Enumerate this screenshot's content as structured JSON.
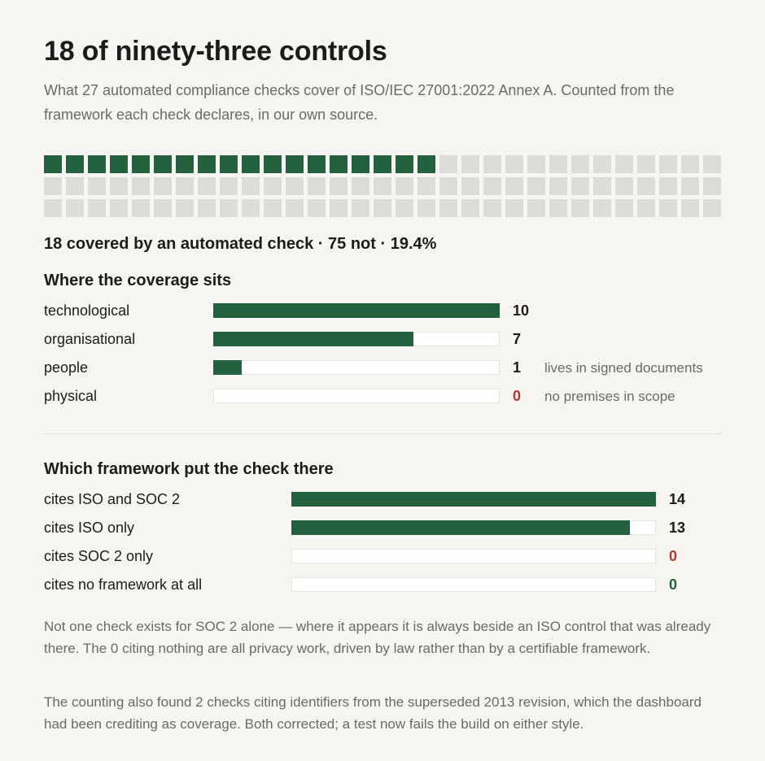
{
  "title": "18 of ninety-three controls",
  "subtitle": "What 27 automated compliance checks cover of ISO/IEC 27001:2022 Annex A. Counted from the framework each check declares, in our own source.",
  "summary": "18 covered by an automated check · 75 not · 19.4%",
  "colors": {
    "covered": "#24613f",
    "uncovered": "#dedcd7",
    "zero_alert": "#b23a2b",
    "background": "#f6f5f1"
  },
  "chart_data": [
    {
      "type": "waffle",
      "total": 93,
      "covered": 18,
      "not_covered": 75,
      "percent_covered": 19.4
    },
    {
      "type": "bar",
      "title": "Where the coverage sits",
      "categories": [
        "technological",
        "organisational",
        "people",
        "physical"
      ],
      "values": [
        10,
        7,
        1,
        0
      ],
      "display_values": [
        "10",
        "7",
        "1",
        "0"
      ],
      "notes": [
        "",
        "",
        "lives in signed documents",
        "no premises in scope"
      ],
      "xlim": [
        0,
        10
      ]
    },
    {
      "type": "bar",
      "title": "Which framework put the check there",
      "categories": [
        "cites ISO and SOC 2",
        "cites ISO only",
        "cites SOC 2 only",
        "cites no framework at all"
      ],
      "values": [
        14,
        13,
        0,
        0
      ],
      "display_values": [
        "14",
        "13",
        "0",
        "0"
      ],
      "xlim": [
        0,
        14
      ]
    }
  ],
  "paragraphs": [
    "Not one check exists for SOC 2 alone — where it appears it is always beside an ISO control that was already there. The 0 citing nothing are all privacy work, driven by law rather than by a certifiable framework.",
    "The counting also found 2 checks citing identifiers from the superseded 2013 revision, which the dashboard had been crediting as coverage. Both corrected; a test now fails the build on either style."
  ]
}
